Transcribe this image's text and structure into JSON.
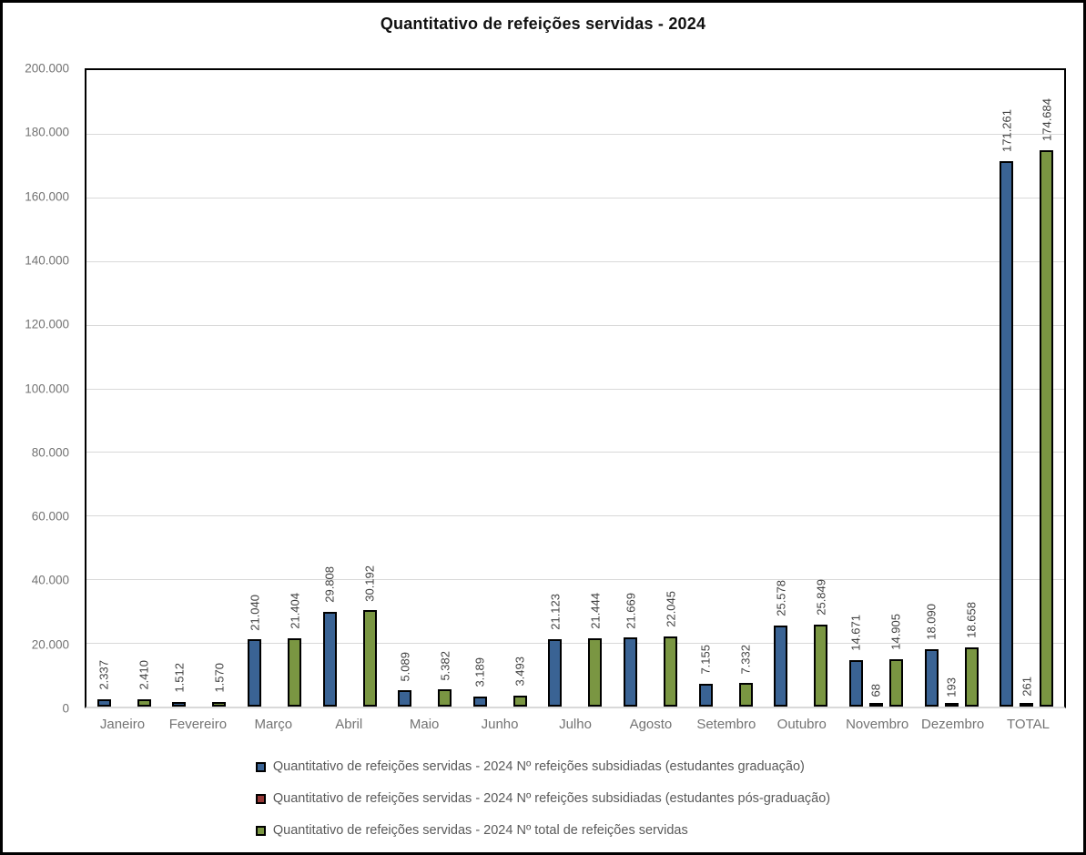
{
  "title": "Quantitativo de refeições servidas - 2024",
  "chart_data": {
    "type": "bar",
    "title": "Quantitativo de refeições servidas - 2024",
    "categories": [
      "Janeiro",
      "Fevereiro",
      "Março",
      "Abril",
      "Maio",
      "Junho",
      "Julho",
      "Agosto",
      "Setembro",
      "Outubro",
      "Novembro",
      "Dezembro",
      "TOTAL"
    ],
    "series": [
      {
        "key": "graduacao",
        "name": "Quantitativo de refeições servidas - 2024 Nº refeições subsidiadas (estudantes graduação)",
        "color": "#3A6394",
        "values": [
          2337,
          1512,
          21040,
          29808,
          5089,
          3189,
          21123,
          21669,
          7155,
          25578,
          14671,
          18090,
          171261
        ],
        "labels": [
          "2.337",
          "1.512",
          "21.040",
          "29.808",
          "5.089",
          "3.189",
          "21.123",
          "21.669",
          "7.155",
          "25.578",
          "14.671",
          "18.090",
          "171.261"
        ]
      },
      {
        "key": "pos-graduacao",
        "name": "Quantitativo de refeições servidas - 2024 Nº refeições subsidiadas (estudantes pós-graduação)",
        "color": "#953735",
        "values": [
          0,
          0,
          0,
          0,
          0,
          0,
          0,
          0,
          0,
          0,
          68,
          193,
          261
        ],
        "labels": [
          "",
          "",
          "",
          "",
          "",
          "",
          "",
          "",
          "",
          "",
          "68",
          "193",
          "261"
        ]
      },
      {
        "key": "total",
        "name": "Quantitativo de refeições servidas - 2024 Nº total de refeições servidas",
        "color": "#7A9642",
        "values": [
          2410,
          1570,
          21404,
          30192,
          5382,
          3493,
          21444,
          22045,
          7332,
          25849,
          14905,
          18658,
          174684
        ],
        "labels": [
          "2.410",
          "1.570",
          "21.404",
          "30.192",
          "5.382",
          "3.493",
          "21.444",
          "22.045",
          "7.332",
          "25.849",
          "14.905",
          "18.658",
          "174.684"
        ]
      }
    ],
    "ylim": [
      0,
      200000
    ],
    "ytick_step": 20000,
    "yticks": [
      "200.000",
      "180.000",
      "160.000",
      "140.000",
      "120.000",
      "100.000",
      "80.000",
      "60.000",
      "40.000",
      "20.000",
      "0"
    ],
    "grid": true,
    "legend_position": "bottom"
  },
  "legend": {
    "items": [
      {
        "label": "Quantitativo de refeições servidas - 2024 Nº refeições subsidiadas (estudantes graduação)",
        "color": "#3A6394"
      },
      {
        "label": "Quantitativo de refeições servidas - 2024 Nº refeições subsidiadas (estudantes pós-graduação)",
        "color": "#953735"
      },
      {
        "label": "Quantitativo de refeições servidas - 2024 Nº total de refeições servidas",
        "color": "#7A9642"
      }
    ]
  },
  "colors": {
    "grid": "#d9d9d9",
    "axis_text": "#737373",
    "data_label_text": "#404040",
    "legend_text": "#595959",
    "plot_border": "#000000"
  }
}
